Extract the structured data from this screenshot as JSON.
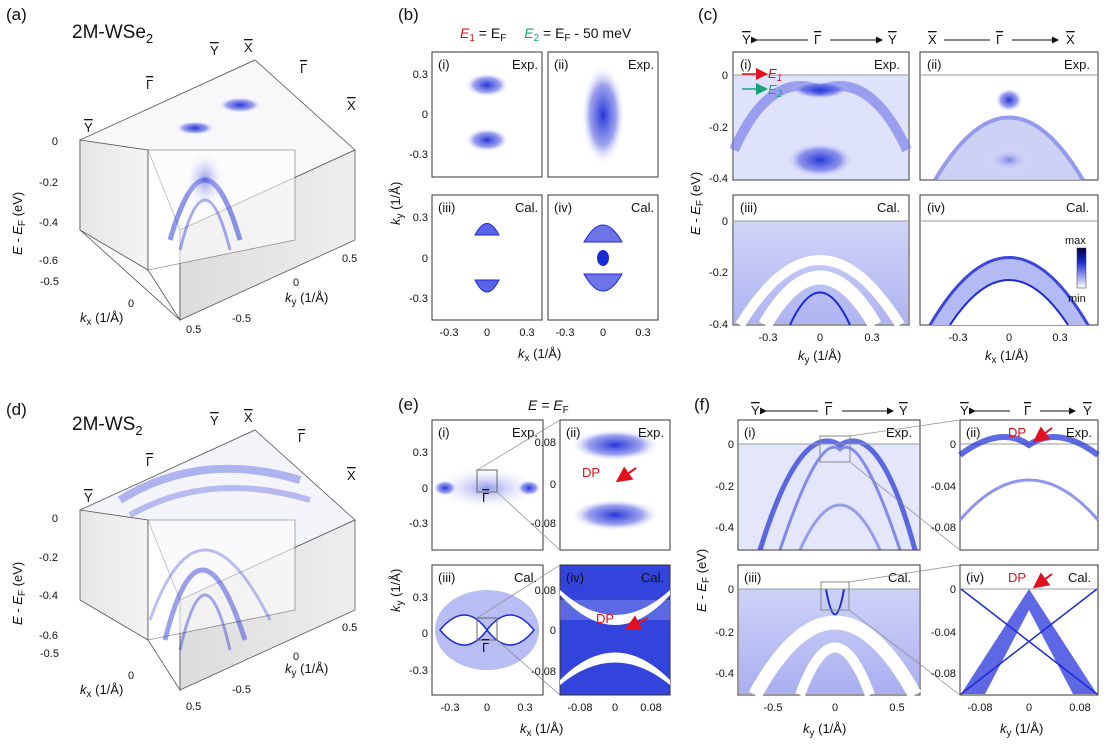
{
  "panels": {
    "a": {
      "label": "(a)",
      "material": "2M-WSe",
      "material_sub": "2"
    },
    "b": {
      "label": "(b)"
    },
    "c": {
      "label": "(c)"
    },
    "d": {
      "label": "(d)",
      "material": "2M-WS",
      "material_sub": "2"
    },
    "e": {
      "label": "(e)"
    },
    "f": {
      "label": "(f)"
    }
  },
  "cube_axes": {
    "energy_label": "E - E",
    "energy_sub": "F",
    "energy_unit": " (eV)",
    "energy_ticks": [
      "0",
      "-0.2",
      "-0.4",
      "-0.6"
    ],
    "kx_label": "k",
    "kx_sub": "x",
    "kx_unit": " (1/Å)",
    "kx_ticks": [
      "-0.5",
      "0",
      "0.5"
    ],
    "ky_label": "k",
    "ky_sub": "y",
    "ky_unit": " (1/Å)",
    "ky_ticks": [
      "0.5",
      "0",
      "-0.5"
    ],
    "points": [
      "Y",
      "X",
      "Γ",
      "X",
      "Γ",
      "Y"
    ]
  },
  "b": {
    "header_e1": "E",
    "header_e1_sub": "1",
    "header_eq1": " = E",
    "header_eq1_sub": "F",
    "header_e2": "E",
    "header_e2_sub": "2",
    "header_eq2": " = E",
    "header_eq2_sub": "F",
    "header_eq2_tail": " - 50 meV",
    "subpanels": [
      "(i)",
      "(ii)",
      "(iii)",
      "(iv)"
    ],
    "tags": [
      "Exp.",
      "Exp.",
      "Cal.",
      "Cal."
    ],
    "y_ticks": [
      "0.3",
      "0",
      "-0.3"
    ],
    "x_ticks": [
      "-0.3",
      "0",
      "0.3"
    ],
    "xlabel": "k",
    "xlabel_sub": "x",
    "xlabel_unit": " (1/Å)",
    "ylabel": "k",
    "ylabel_sub": "y",
    "ylabel_unit": " (1/Å)"
  },
  "c": {
    "dir_left": {
      "from": "Y",
      "mid": "Γ",
      "to": "Y"
    },
    "dir_right": {
      "from": "X",
      "mid": "Γ",
      "to": "X"
    },
    "subpanels": [
      "(i)",
      "(ii)",
      "(iii)",
      "(iv)"
    ],
    "tags": [
      "Exp.",
      "Exp.",
      "Cal.",
      "Cal."
    ],
    "arrow1": "E",
    "arrow1_sub": "1",
    "arrow2": "E",
    "arrow2_sub": "2",
    "y_ticks": [
      "0",
      "-0.2",
      "-0.4"
    ],
    "x_ticks": [
      "-0.3",
      "0",
      "0.3"
    ],
    "ylabel": "E - E",
    "ylabel_sub": "F",
    "ylabel_unit": " (eV)",
    "xlabel_left": "k",
    "xlabel_left_sub": "y",
    "xlabel_unit": " (1/Å)",
    "xlabel_right": "k",
    "xlabel_right_sub": "x",
    "cbar_max": "max",
    "cbar_min": "min"
  },
  "e": {
    "header": "E = E",
    "header_sub": "F",
    "subpanels": [
      "(i)",
      "(ii)",
      "(iii)",
      "(iv)"
    ],
    "tags": [
      "Exp.",
      "Exp.",
      "Cal.",
      "Cal."
    ],
    "dp": "DP",
    "gamma": "Γ",
    "y_ticks_left": [
      "0.3",
      "0",
      "-0.3"
    ],
    "y_ticks_right": [
      "0.08",
      "0",
      "-0.08"
    ],
    "x_ticks_left": [
      "-0.3",
      "0",
      "0.3"
    ],
    "x_ticks_right": [
      "-0.08",
      "0",
      "0.08"
    ],
    "xlabel": "k",
    "xlabel_sub": "x",
    "xlabel_unit": " (1/Å)",
    "ylabel": "k",
    "ylabel_sub": "y",
    "ylabel_unit": " (1/Å)"
  },
  "f": {
    "dir_left": {
      "from": "Y",
      "mid": "Γ",
      "to": "Y"
    },
    "dir_right": {
      "from": "Y",
      "mid": "Γ",
      "to": "Y"
    },
    "subpanels": [
      "(i)",
      "(ii)",
      "(iii)",
      "(iv)"
    ],
    "tags": [
      "Exp.",
      "Exp.",
      "Cal.",
      "Cal."
    ],
    "dp": "DP",
    "y_ticks_left": [
      "0",
      "-0.2",
      "-0.4"
    ],
    "y_ticks_right": [
      "0",
      "-0.04",
      "-0.08"
    ],
    "x_ticks_left": [
      "-0.5",
      "0",
      "0.5"
    ],
    "x_ticks_right": [
      "-0.08",
      "0",
      "0.08"
    ],
    "ylabel": "E - E",
    "ylabel_sub": "F",
    "ylabel_unit": " (eV)",
    "xlabel": "k",
    "xlabel_sub": "y",
    "xlabel_unit": " (1/Å)"
  },
  "colors": {
    "band": "#1a2bd6",
    "band_light": "#8f96f0",
    "arrow_red": "#e0101e",
    "arrow_green": "#14a37a",
    "frame": "#333333"
  }
}
